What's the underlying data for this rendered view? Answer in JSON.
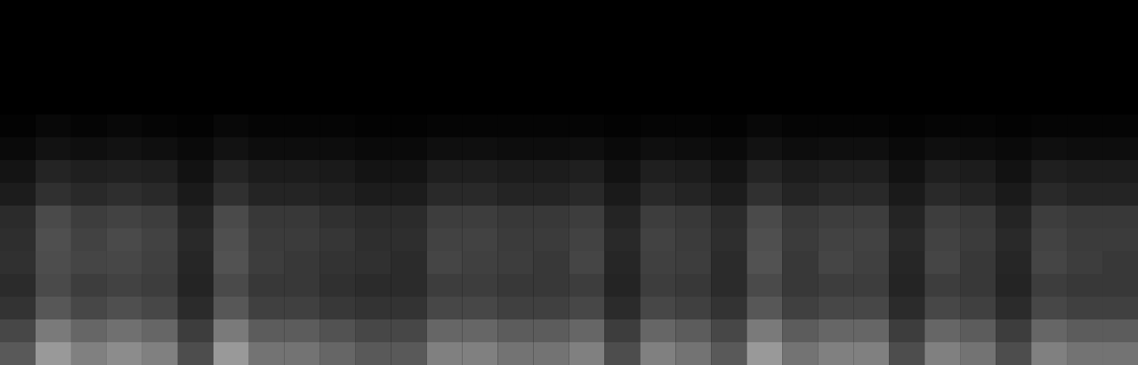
{
  "chart_data": {
    "type": "heatmap",
    "tick_labels": false,
    "zlim": [
      0,
      100
    ],
    "cells": [
      [
        0,
        0,
        0,
        0,
        0,
        0,
        0,
        0,
        0,
        0,
        0,
        0,
        0,
        0,
        0,
        0,
        0,
        0,
        0,
        0,
        0,
        0,
        0,
        0,
        0,
        0,
        0,
        0,
        0,
        0,
        0,
        0
      ],
      [
        0,
        0,
        0,
        0,
        0,
        0,
        0,
        0,
        0,
        0,
        0,
        0,
        0,
        0,
        0,
        0,
        0,
        0,
        0,
        0,
        0,
        0,
        0,
        0,
        0,
        0,
        0,
        0,
        0,
        0,
        0,
        0
      ],
      [
        0,
        0,
        0,
        0,
        0,
        0,
        0,
        0,
        0,
        0,
        0,
        0,
        0,
        0,
        0,
        0,
        0,
        0,
        0,
        0,
        0,
        0,
        0,
        0,
        0,
        0,
        0,
        0,
        0,
        0,
        0,
        0
      ],
      [
        0,
        0,
        0,
        0,
        0,
        0,
        0,
        0,
        0,
        0,
        0,
        0,
        0,
        0,
        0,
        0,
        0,
        0,
        0,
        0,
        0,
        0,
        0,
        0,
        0,
        0,
        0,
        0,
        0,
        0,
        0,
        0
      ],
      [
        0,
        0,
        0,
        0,
        0,
        0,
        0,
        0,
        0,
        0,
        0,
        0,
        0,
        0,
        0,
        0,
        0,
        0,
        0,
        0,
        0,
        0,
        0,
        0,
        0,
        0,
        0,
        0,
        0,
        0,
        0,
        0
      ],
      [
        1,
        3,
        2,
        3,
        2,
        1,
        3,
        2,
        2,
        2,
        1,
        1,
        2,
        2,
        2,
        2,
        2,
        1,
        2,
        2,
        1,
        3,
        2,
        2,
        2,
        1,
        2,
        2,
        1,
        2,
        2,
        2
      ],
      [
        4,
        7,
        6,
        7,
        6,
        4,
        7,
        5,
        5,
        5,
        4,
        4,
        6,
        6,
        5,
        5,
        6,
        4,
        6,
        5,
        4,
        7,
        5,
        6,
        6,
        4,
        6,
        5,
        4,
        6,
        5,
        5
      ],
      [
        8,
        14,
        12,
        13,
        12,
        7,
        14,
        11,
        11,
        10,
        8,
        8,
        12,
        12,
        11,
        11,
        12,
        7,
        12,
        11,
        8,
        14,
        11,
        12,
        12,
        7,
        12,
        11,
        7,
        12,
        11,
        11
      ],
      [
        11,
        19,
        16,
        18,
        16,
        10,
        19,
        14,
        14,
        13,
        11,
        11,
        16,
        16,
        14,
        14,
        16,
        10,
        16,
        14,
        11,
        19,
        14,
        16,
        16,
        10,
        16,
        14,
        10,
        16,
        14,
        14
      ],
      [
        17,
        29,
        24,
        26,
        24,
        14,
        29,
        22,
        22,
        19,
        17,
        17,
        24,
        24,
        22,
        22,
        24,
        14,
        24,
        22,
        17,
        29,
        22,
        24,
        24,
        14,
        24,
        22,
        14,
        24,
        22,
        22
      ],
      [
        18,
        31,
        26,
        29,
        26,
        16,
        31,
        23,
        23,
        21,
        18,
        18,
        26,
        26,
        23,
        23,
        26,
        16,
        26,
        23,
        18,
        31,
        23,
        26,
        26,
        16,
        26,
        23,
        16,
        26,
        23,
        23
      ],
      [
        19,
        30,
        27,
        28,
        25,
        15,
        32,
        24,
        22,
        20,
        19,
        17,
        27,
        25,
        24,
        22,
        27,
        15,
        25,
        24,
        17,
        32,
        22,
        27,
        25,
        15,
        27,
        22,
        15,
        27,
        24,
        22
      ],
      [
        17,
        29,
        24,
        26,
        24,
        14,
        29,
        22,
        22,
        19,
        17,
        17,
        24,
        24,
        22,
        22,
        24,
        14,
        24,
        22,
        17,
        29,
        22,
        24,
        24,
        14,
        24,
        22,
        14,
        24,
        22,
        22
      ],
      [
        20,
        34,
        28,
        31,
        28,
        17,
        34,
        25,
        25,
        22,
        20,
        20,
        28,
        28,
        25,
        25,
        28,
        17,
        28,
        25,
        20,
        34,
        25,
        28,
        28,
        17,
        28,
        25,
        17,
        28,
        25,
        25
      ],
      [
        28,
        48,
        40,
        44,
        40,
        24,
        48,
        36,
        36,
        32,
        28,
        28,
        40,
        40,
        36,
        36,
        40,
        24,
        40,
        36,
        28,
        48,
        36,
        40,
        40,
        24,
        40,
        36,
        24,
        40,
        36,
        36
      ],
      [
        35,
        60,
        50,
        55,
        50,
        30,
        60,
        45,
        45,
        40,
        35,
        35,
        50,
        50,
        45,
        45,
        50,
        30,
        50,
        45,
        35,
        60,
        45,
        50,
        50,
        30,
        50,
        45,
        30,
        50,
        45,
        45
      ]
    ]
  }
}
